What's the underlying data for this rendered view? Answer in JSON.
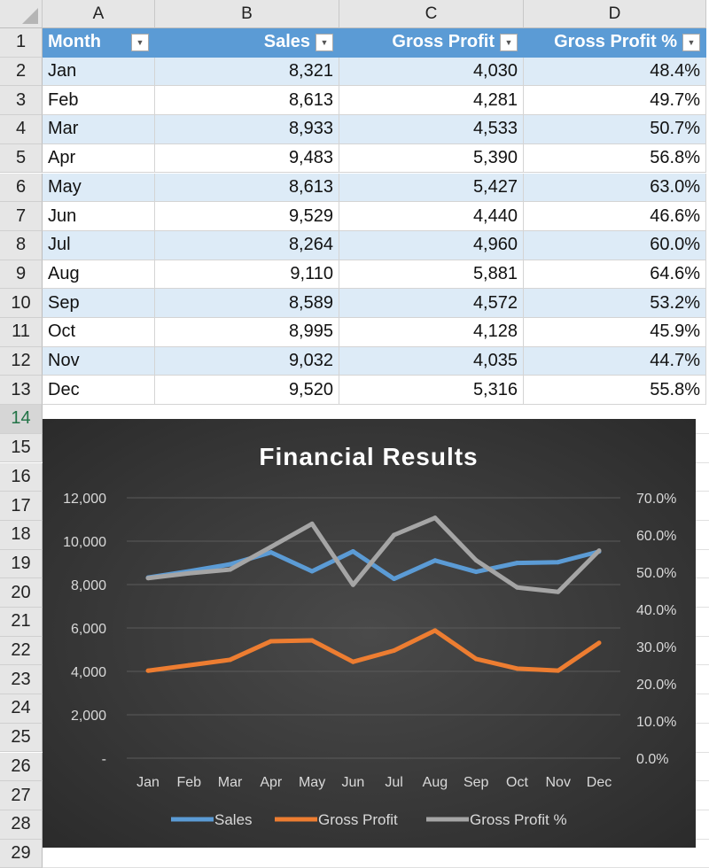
{
  "columns": [
    "A",
    "B",
    "C",
    "D"
  ],
  "table": {
    "headers": [
      "Month",
      "Sales",
      "Gross Profit",
      "Gross Profit %"
    ],
    "rows": [
      [
        "Jan",
        "8,321",
        "4,030",
        "48.4%"
      ],
      [
        "Feb",
        "8,613",
        "4,281",
        "49.7%"
      ],
      [
        "Mar",
        "8,933",
        "4,533",
        "50.7%"
      ],
      [
        "Apr",
        "9,483",
        "5,390",
        "56.8%"
      ],
      [
        "May",
        "8,613",
        "5,427",
        "63.0%"
      ],
      [
        "Jun",
        "9,529",
        "4,440",
        "46.6%"
      ],
      [
        "Jul",
        "8,264",
        "4,960",
        "60.0%"
      ],
      [
        "Aug",
        "9,110",
        "5,881",
        "64.6%"
      ],
      [
        "Sep",
        "8,589",
        "4,572",
        "53.2%"
      ],
      [
        "Oct",
        "8,995",
        "4,128",
        "45.9%"
      ],
      [
        "Nov",
        "9,032",
        "4,035",
        "44.7%"
      ],
      [
        "Dec",
        "9,520",
        "5,316",
        "55.8%"
      ]
    ]
  },
  "row_numbers": [
    "1",
    "2",
    "3",
    "4",
    "5",
    "6",
    "7",
    "8",
    "9",
    "10",
    "11",
    "12",
    "13",
    "14",
    "15",
    "16",
    "17",
    "18",
    "19",
    "20",
    "21",
    "22",
    "23",
    "24",
    "25",
    "26",
    "27",
    "28",
    "29"
  ],
  "colors": {
    "header": "#5b9bd5",
    "band": "#ddebf7",
    "sales": "#5b9bd5",
    "gross_profit": "#ed7d31",
    "gross_profit_pct": "#a5a5a5",
    "chart_bg": "#3a3a3a"
  },
  "chart_data": {
    "type": "line",
    "title": "Financial Results",
    "categories": [
      "Jan",
      "Feb",
      "Mar",
      "Apr",
      "May",
      "Jun",
      "Jul",
      "Aug",
      "Sep",
      "Oct",
      "Nov",
      "Dec"
    ],
    "series": [
      {
        "name": "Sales",
        "axis": "left",
        "values": [
          8321,
          8613,
          8933,
          9483,
          8613,
          9529,
          8264,
          9110,
          8589,
          8995,
          9032,
          9520
        ]
      },
      {
        "name": "Gross Profit",
        "axis": "left",
        "values": [
          4030,
          4281,
          4533,
          5390,
          5427,
          4440,
          4960,
          5881,
          4572,
          4128,
          4035,
          5316
        ]
      },
      {
        "name": "Gross Profit %",
        "axis": "right",
        "values": [
          48.4,
          49.7,
          50.7,
          56.8,
          63.0,
          46.6,
          60.0,
          64.6,
          53.2,
          45.9,
          44.7,
          55.8
        ]
      }
    ],
    "left_axis": {
      "range": [
        0,
        12000
      ],
      "ticks": [
        "-",
        "2,000",
        "4,000",
        "6,000",
        "8,000",
        "10,000",
        "12,000"
      ]
    },
    "right_axis": {
      "range": [
        0,
        70
      ],
      "ticks": [
        "0.0%",
        "10.0%",
        "20.0%",
        "30.0%",
        "40.0%",
        "50.0%",
        "60.0%",
        "70.0%"
      ]
    },
    "grid": true,
    "legend": "bottom"
  }
}
